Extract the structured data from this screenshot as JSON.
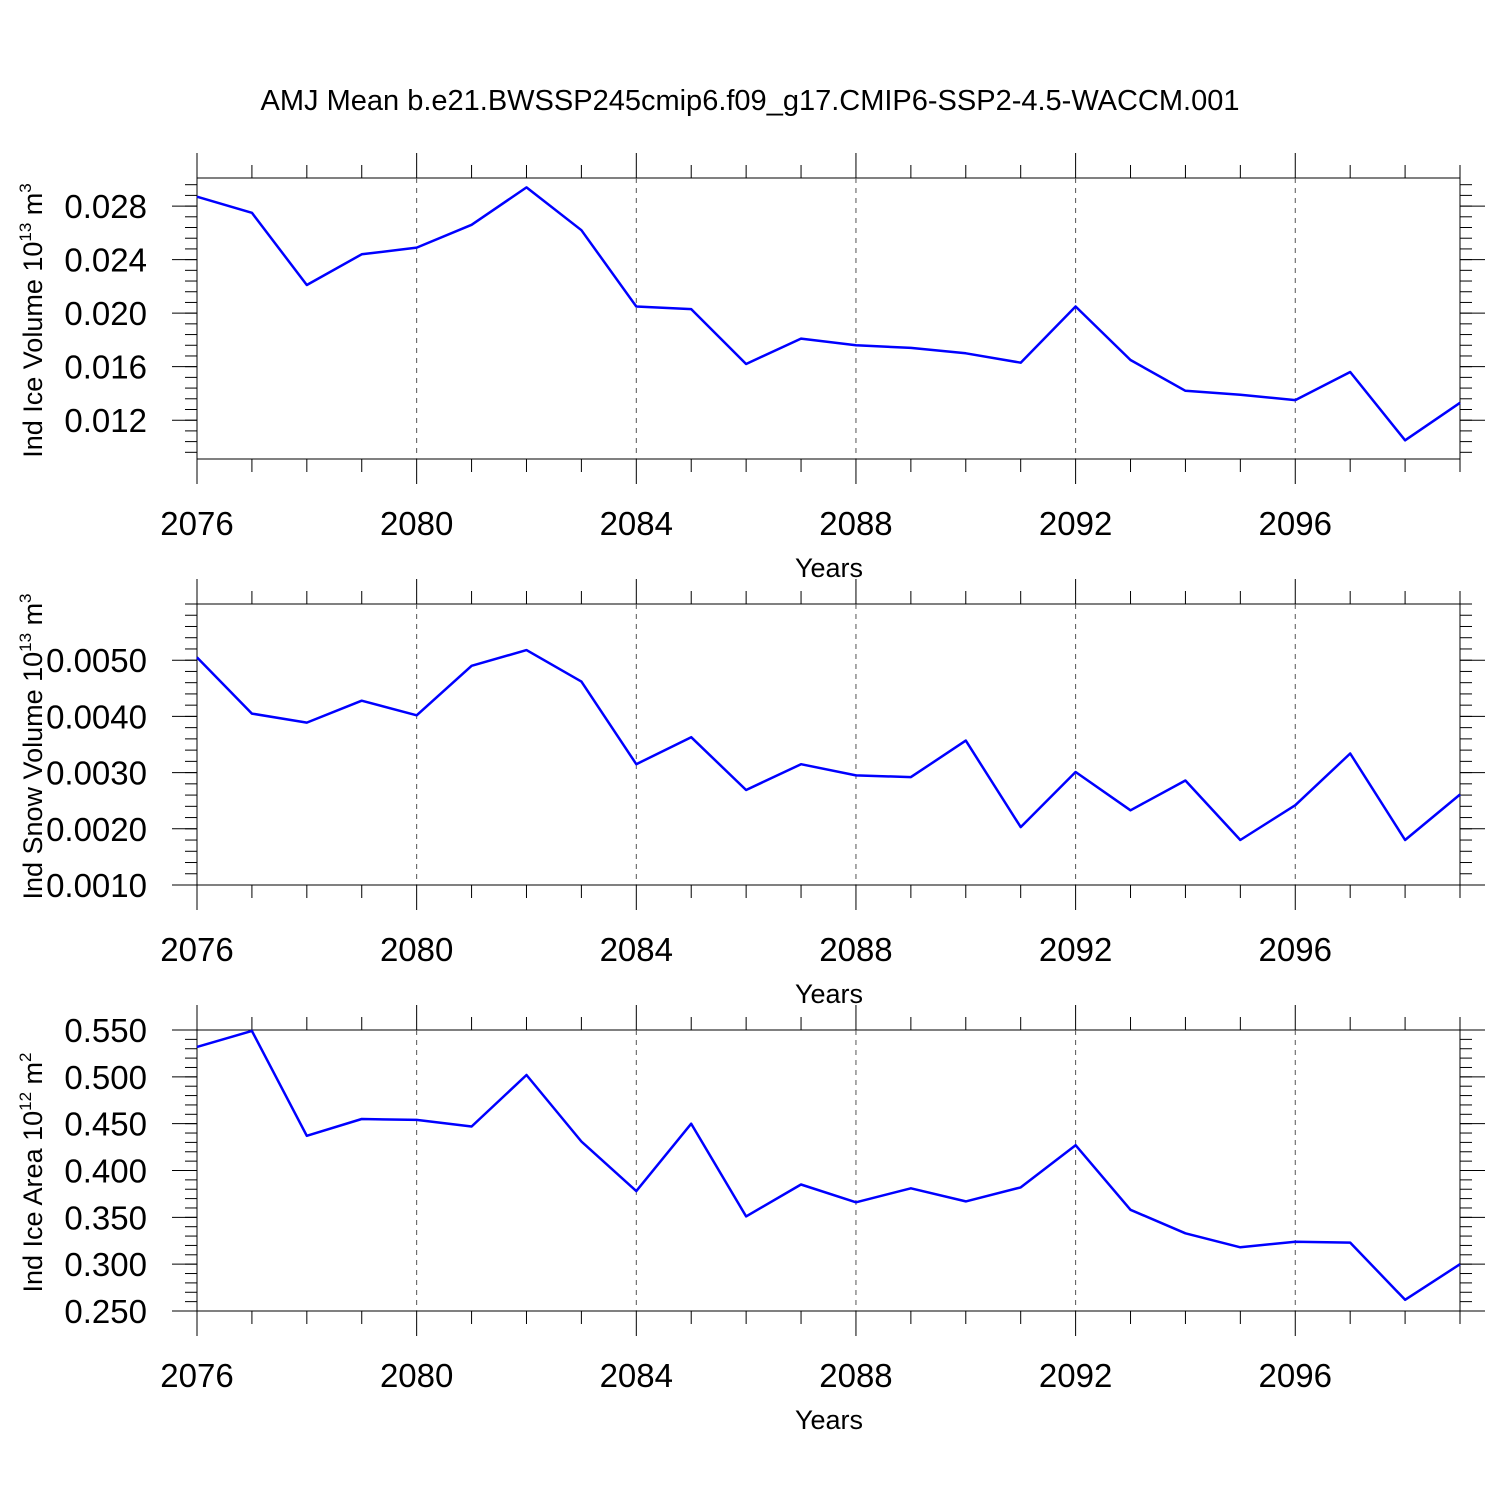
{
  "title": "AMJ Mean b.e21.BWSSP245cmip6.f09_g17.CMIP6-SSP2-4.5-WACCM.001",
  "line_color": "#0000ff",
  "chart_data": [
    {
      "type": "line",
      "ylabel": {
        "text": "Ind Ice Volume 10",
        "sup": "13",
        "unit": " m",
        "unit_sup": "3"
      },
      "xlabel": "Years",
      "xlim": [
        2076,
        2099
      ],
      "ylim": [
        0.0091,
        0.0301
      ],
      "yticks": [
        0.012,
        0.016,
        0.02,
        0.024,
        0.028
      ],
      "ytick_labels": [
        "0.012",
        "0.016",
        "0.020",
        "0.024",
        "0.028"
      ],
      "yminor_step": 0.0008,
      "xticks": [
        2076,
        2080,
        2084,
        2088,
        2092,
        2096
      ],
      "xtick_labels": [
        "2076",
        "2080",
        "2084",
        "2088",
        "2092",
        "2096"
      ],
      "grid": "vertical-dashed",
      "x": [
        2076,
        2077,
        2078,
        2079,
        2080,
        2081,
        2082,
        2083,
        2084,
        2085,
        2086,
        2087,
        2088,
        2089,
        2090,
        2091,
        2092,
        2093,
        2094,
        2095,
        2096,
        2097,
        2098,
        2099
      ],
      "values": [
        0.0287,
        0.0275,
        0.0221,
        0.0244,
        0.0249,
        0.0266,
        0.0294,
        0.0262,
        0.0205,
        0.0203,
        0.0162,
        0.0181,
        0.0176,
        0.0174,
        0.017,
        0.0163,
        0.0205,
        0.0165,
        0.0142,
        0.0139,
        0.0135,
        0.0156,
        0.0105,
        0.0133
      ]
    },
    {
      "type": "line",
      "ylabel": {
        "text": "Ind Snow Volume 10",
        "sup": "13",
        "unit": " m",
        "unit_sup": "3"
      },
      "xlabel": "Years",
      "xlim": [
        2076,
        2099
      ],
      "ylim": [
        0.001,
        0.006
      ],
      "yticks": [
        0.001,
        0.002,
        0.003,
        0.004,
        0.005
      ],
      "ytick_labels": [
        "0.0010",
        "0.0020",
        "0.0030",
        "0.0040",
        "0.0050"
      ],
      "yminor_step": 0.0002,
      "xticks": [
        2076,
        2080,
        2084,
        2088,
        2092,
        2096
      ],
      "xtick_labels": [
        "2076",
        "2080",
        "2084",
        "2088",
        "2092",
        "2096"
      ],
      "grid": "vertical-dashed",
      "x": [
        2076,
        2077,
        2078,
        2079,
        2080,
        2081,
        2082,
        2083,
        2084,
        2085,
        2086,
        2087,
        2088,
        2089,
        2090,
        2091,
        2092,
        2093,
        2094,
        2095,
        2096,
        2097,
        2098,
        2099
      ],
      "values": [
        0.00505,
        0.00405,
        0.00389,
        0.00428,
        0.00402,
        0.0049,
        0.00518,
        0.00462,
        0.00315,
        0.00363,
        0.00269,
        0.00315,
        0.00295,
        0.00292,
        0.00357,
        0.00203,
        0.00301,
        0.00233,
        0.00286,
        0.0018,
        0.00242,
        0.00334,
        0.0018,
        0.00261
      ]
    },
    {
      "type": "line",
      "ylabel": {
        "text": "Ind Ice Area 10",
        "sup": "12",
        "unit": " m",
        "unit_sup": "2"
      },
      "xlabel": "Years",
      "xlim": [
        2076,
        2099
      ],
      "ylim": [
        0.25,
        0.55
      ],
      "yticks": [
        0.25,
        0.3,
        0.35,
        0.4,
        0.45,
        0.5,
        0.55
      ],
      "ytick_labels": [
        "0.250",
        "0.300",
        "0.350",
        "0.400",
        "0.450",
        "0.500",
        "0.550"
      ],
      "yminor_step": 0.01,
      "xticks": [
        2076,
        2080,
        2084,
        2088,
        2092,
        2096
      ],
      "xtick_labels": [
        "2076",
        "2080",
        "2084",
        "2088",
        "2092",
        "2096"
      ],
      "grid": "vertical-dashed",
      "x": [
        2076,
        2077,
        2078,
        2079,
        2080,
        2081,
        2082,
        2083,
        2084,
        2085,
        2086,
        2087,
        2088,
        2089,
        2090,
        2091,
        2092,
        2093,
        2094,
        2095,
        2096,
        2097,
        2098,
        2099
      ],
      "values": [
        0.532,
        0.549,
        0.437,
        0.455,
        0.454,
        0.447,
        0.502,
        0.431,
        0.378,
        0.45,
        0.351,
        0.385,
        0.366,
        0.381,
        0.367,
        0.382,
        0.427,
        0.358,
        0.333,
        0.318,
        0.324,
        0.323,
        0.262,
        0.3
      ]
    }
  ]
}
